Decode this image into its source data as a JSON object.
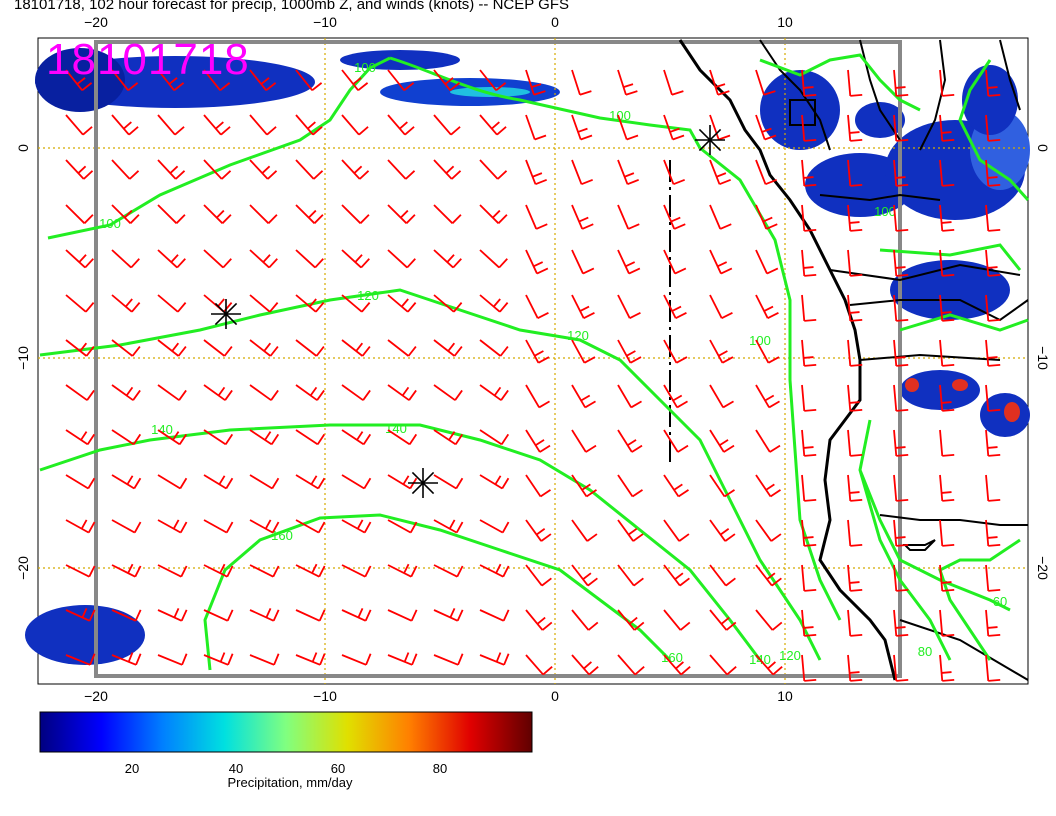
{
  "title": "18101718, 102 hour forecast for precip, 1000mb Z, and winds (knots) -- NCEP GFS",
  "stamp": "18101718",
  "map": {
    "lon_ticks": [
      "−20",
      "−10",
      "0",
      "10"
    ],
    "lat_ticks": [
      "0",
      "−10",
      "−20"
    ],
    "colors": {
      "wind_barb": "#ff0000",
      "contour": "#22ee22",
      "coast": "#000000",
      "grid": "#ccaa00",
      "frame": "#888888"
    },
    "contour_labels": [
      "100",
      "100",
      "100",
      "100",
      "120",
      "120",
      "140",
      "140",
      "160",
      "160",
      "140",
      "120",
      "100",
      "80",
      "60"
    ],
    "markers": [
      "asterisk",
      "asterisk",
      "asterisk"
    ]
  },
  "colorbar": {
    "ticks": [
      "20",
      "40",
      "60",
      "80"
    ],
    "label": "Precipitation, mm/day",
    "colors": [
      "#000080",
      "#0000ff",
      "#0080ff",
      "#00e0e0",
      "#80ff80",
      "#e0e000",
      "#ff8000",
      "#e00000",
      "#600000"
    ]
  }
}
